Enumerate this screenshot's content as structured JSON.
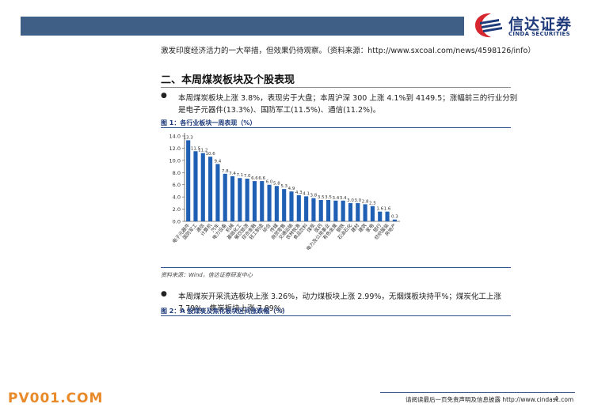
{
  "header": {
    "logo_cn": "信达证券",
    "logo_en": "CINDA SECURITIES"
  },
  "intro_text": "激发印度经济活力的一大举措，但效果仍待观察。（资料来源：http://www.sxcoal.com/news/4598126/info）",
  "section_title": "二、本周煤炭板块及个股表现",
  "bullet1": "本周煤炭板块上涨 3.8%，表现劣于大盘；本周沪深 300 上涨 4.1%到 4149.5；涨幅前三的行业分别是电子元器件(13.3%)、国防军工(11.5%)、通信(11.2%)。",
  "figure1_title": "图 1：各行业板块一周表现（%）",
  "figure1_source": "资料来源：Wind，信达证券研发中心",
  "bullet2": "本周煤炭开采洗选板块上涨 3.26%，动力煤板块上涨 2.99%，无烟煤板块持平%；煤炭化工上涨 7.79%，焦炭板块上涨 7.89%。",
  "figure2_title": "图 2：A 股煤炭及焦化板块区间涨跌幅（%）",
  "watermark": "PV001.COM",
  "footer_text": "请阅读最后一页免责声明及信息披露 http://www.cindasc.com",
  "page_number": "4",
  "chart_data": {
    "type": "bar",
    "title": "各行业板块一周表现（%）",
    "categories": [
      "电子元器件",
      "国防军工",
      "通信",
      "计算机",
      "汽车",
      "电力设备",
      "机械",
      "基础化工",
      "餐饮旅游",
      "综合金融",
      "轻工制造",
      "综合",
      "传媒",
      "商贸零售",
      "交通运输",
      "农林牧渔",
      "食品饮料",
      "煤炭",
      "医药",
      "电力及公用事业",
      "有色金属",
      "钢铁",
      "石油石化",
      "建材",
      "建筑",
      "家电",
      "银行",
      "纺织服装",
      "房地产"
    ],
    "values": [
      13.3,
      11.5,
      11.2,
      10.6,
      9.4,
      7.8,
      7.4,
      7.1,
      7.0,
      6.6,
      6.6,
      6.0,
      5.8,
      5.3,
      4.9,
      4.3,
      4.1,
      3.8,
      3.5,
      3.5,
      3.4,
      3.4,
      3.0,
      3.0,
      2.8,
      2.5,
      1.6,
      1.6,
      0.3
    ],
    "yticks": [
      "0.0",
      "2.0",
      "4.0",
      "6.0",
      "8.0",
      "10.0",
      "12.0",
      "14.0"
    ],
    "ylim": [
      0,
      14
    ],
    "bar_color": "#1f5fb4",
    "grid": false,
    "legend": "none"
  }
}
